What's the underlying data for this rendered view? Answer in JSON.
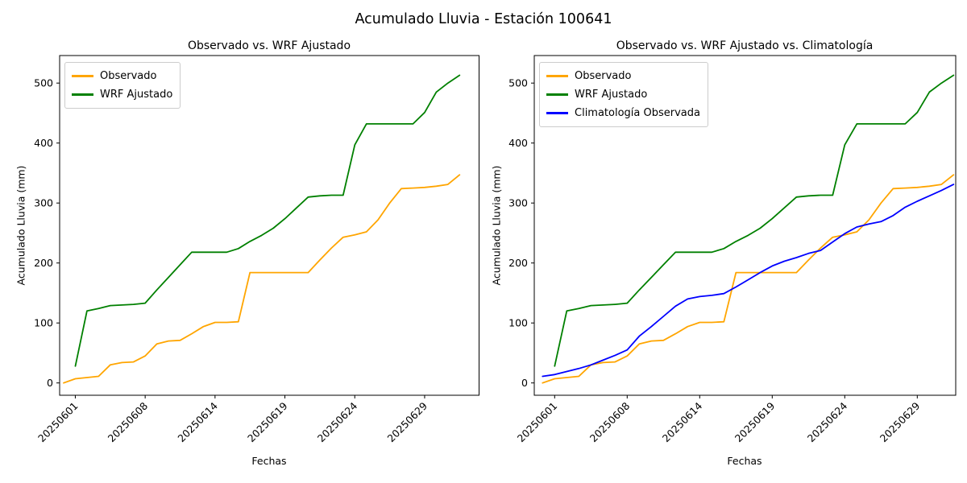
{
  "figure": {
    "suptitle": "Acumulado Lluvia - Estación 100641"
  },
  "colors": {
    "observado": "#FFA500",
    "wrf_ajustado": "#008000",
    "climatologia": "#0000FF",
    "axis": "#000000",
    "legend_border": "#cccccc"
  },
  "chart_data": [
    {
      "type": "line",
      "title": "Observado vs. WRF Ajustado",
      "xlabel": "Fechas",
      "ylabel": "Acumulado Lluvia (mm)",
      "yticks": [
        0,
        100,
        200,
        300,
        400,
        500
      ],
      "ylim": [
        -20,
        546
      ],
      "grid": false,
      "legend_position": "upper left",
      "n_points": 35,
      "x_tick_indices": [
        1,
        7,
        13,
        19,
        25,
        31
      ],
      "x_tick_labels": [
        "20250601",
        "20250608",
        "20250614",
        "20250619",
        "20250624",
        "20250629"
      ],
      "series": [
        {
          "name": "Observado",
          "color": "#FFA500",
          "values": [
            0,
            7,
            9,
            11,
            30,
            34,
            35,
            45,
            65,
            70,
            71,
            82,
            94,
            101,
            101,
            102,
            184,
            184,
            184,
            184,
            184,
            184,
            205,
            225,
            243,
            247,
            252,
            272,
            300,
            324,
            325,
            326,
            328,
            331,
            347
          ]
        },
        {
          "name": "WRF Ajustado",
          "color": "#008000",
          "values": [
            null,
            28,
            120,
            124,
            129,
            130,
            131,
            133,
            155,
            176,
            197,
            218,
            218,
            218,
            218,
            224,
            236,
            246,
            258,
            274,
            292,
            310,
            312,
            313,
            313,
            397,
            432,
            432,
            432,
            432,
            432,
            451,
            485,
            500,
            513
          ]
        }
      ]
    },
    {
      "type": "line",
      "title": "Observado vs. WRF Ajustado vs. Climatología",
      "xlabel": "Fechas",
      "ylabel": "Acumulado Lluvia (mm)",
      "yticks": [
        0,
        100,
        200,
        300,
        400,
        500
      ],
      "ylim": [
        -20,
        546
      ],
      "grid": false,
      "legend_position": "upper left",
      "n_points": 35,
      "x_tick_indices": [
        1,
        7,
        13,
        19,
        25,
        31
      ],
      "x_tick_labels": [
        "20250601",
        "20250608",
        "20250614",
        "20250619",
        "20250624",
        "20250629"
      ],
      "series": [
        {
          "name": "Observado",
          "color": "#FFA500",
          "values": [
            0,
            7,
            9,
            11,
            30,
            34,
            35,
            45,
            65,
            70,
            71,
            82,
            94,
            101,
            101,
            102,
            184,
            184,
            184,
            184,
            184,
            184,
            205,
            225,
            243,
            247,
            252,
            272,
            300,
            324,
            325,
            326,
            328,
            331,
            347
          ]
        },
        {
          "name": "WRF Ajustado",
          "color": "#008000",
          "values": [
            null,
            28,
            120,
            124,
            129,
            130,
            131,
            133,
            155,
            176,
            197,
            218,
            218,
            218,
            218,
            224,
            236,
            246,
            258,
            274,
            292,
            310,
            312,
            313,
            313,
            397,
            432,
            432,
            432,
            432,
            432,
            451,
            485,
            500,
            513
          ]
        },
        {
          "name": "Climatología Observada",
          "color": "#0000FF",
          "values": [
            11,
            14,
            19,
            24,
            30,
            38,
            46,
            55,
            78,
            94,
            111,
            128,
            140,
            144,
            146,
            149,
            160,
            172,
            184,
            195,
            203,
            209,
            216,
            221,
            235,
            249,
            260,
            265,
            269,
            279,
            293,
            303,
            312,
            321,
            331
          ]
        }
      ]
    }
  ]
}
